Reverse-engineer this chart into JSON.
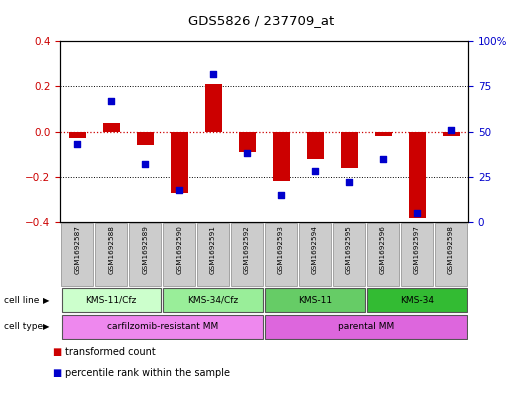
{
  "title": "GDS5826 / 237709_at",
  "samples": [
    "GSM1692587",
    "GSM1692588",
    "GSM1692589",
    "GSM1692590",
    "GSM1692591",
    "GSM1692592",
    "GSM1692593",
    "GSM1692594",
    "GSM1692595",
    "GSM1692596",
    "GSM1692597",
    "GSM1692598"
  ],
  "transformed_count": [
    -0.03,
    0.04,
    -0.06,
    -0.27,
    0.21,
    -0.09,
    -0.22,
    -0.12,
    -0.16,
    -0.02,
    -0.38,
    -0.02
  ],
  "percentile_rank": [
    43,
    67,
    32,
    18,
    82,
    38,
    15,
    28,
    22,
    35,
    5,
    51
  ],
  "ylim_left": [
    -0.4,
    0.4
  ],
  "ylim_right": [
    0,
    100
  ],
  "yticks_left": [
    -0.4,
    -0.2,
    0.0,
    0.2,
    0.4
  ],
  "yticks_right": [
    0,
    25,
    50,
    75,
    100
  ],
  "bar_color": "#cc0000",
  "dot_color": "#0000cc",
  "zero_line_color": "#cc0000",
  "cell_line_groups": [
    {
      "label": "KMS-11/Cfz",
      "start": 0,
      "end": 3,
      "color": "#ccffcc"
    },
    {
      "label": "KMS-34/Cfz",
      "start": 3,
      "end": 6,
      "color": "#99ee99"
    },
    {
      "label": "KMS-11",
      "start": 6,
      "end": 9,
      "color": "#66cc66"
    },
    {
      "label": "KMS-34",
      "start": 9,
      "end": 12,
      "color": "#33bb33"
    }
  ],
  "cell_type_groups": [
    {
      "label": "carfilzomib-resistant MM",
      "start": 0,
      "end": 6,
      "color": "#ee88ee"
    },
    {
      "label": "parental MM",
      "start": 6,
      "end": 12,
      "color": "#dd66dd"
    }
  ],
  "sample_box_color": "#cccccc",
  "legend_items": [
    {
      "label": "transformed count",
      "color": "#cc0000"
    },
    {
      "label": "percentile rank within the sample",
      "color": "#0000cc"
    }
  ]
}
